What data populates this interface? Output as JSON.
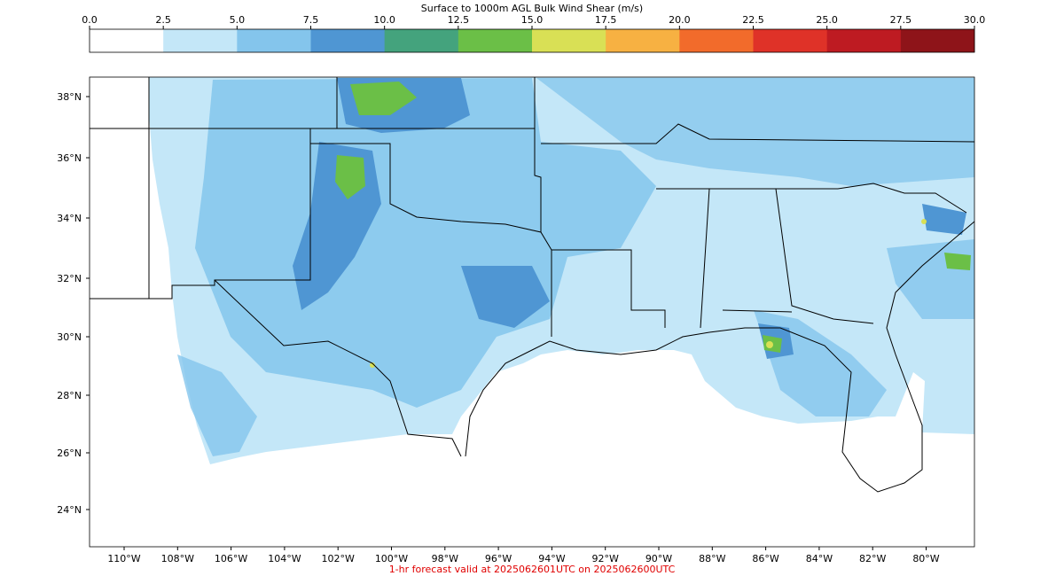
{
  "colorbar": {
    "title": "Surface to 1000m AGL Bulk Wind Shear (m/s)",
    "tick_labels": [
      "0.0",
      "2.5",
      "5.0",
      "7.5",
      "10.0",
      "12.5",
      "15.0",
      "17.5",
      "20.0",
      "22.5",
      "25.0",
      "27.5",
      "30.0"
    ],
    "bin_colors": [
      "#ffffff",
      "#c4e7f8",
      "#84c5ec",
      "#4f96d3",
      "#44a37d",
      "#6bbf47",
      "#d9e055",
      "#f7b142",
      "#f26b2b",
      "#df3228",
      "#be1b22",
      "#8e1419"
    ]
  },
  "map": {
    "lat_labels": [
      "38°N",
      "36°N",
      "34°N",
      "32°N",
      "30°N",
      "28°N",
      "26°N",
      "24°N"
    ],
    "lon_labels": [
      "110°W",
      "108°W",
      "106°W",
      "104°W",
      "102°W",
      "100°W",
      "98°W",
      "96°W",
      "94°W",
      "92°W",
      "90°W",
      "88°W",
      "86°W",
      "84°W",
      "82°W",
      "80°W"
    ]
  },
  "footer": {
    "forecast_text": "1-hr forecast valid at 2025062601UTC on 2025062600UTC"
  }
}
